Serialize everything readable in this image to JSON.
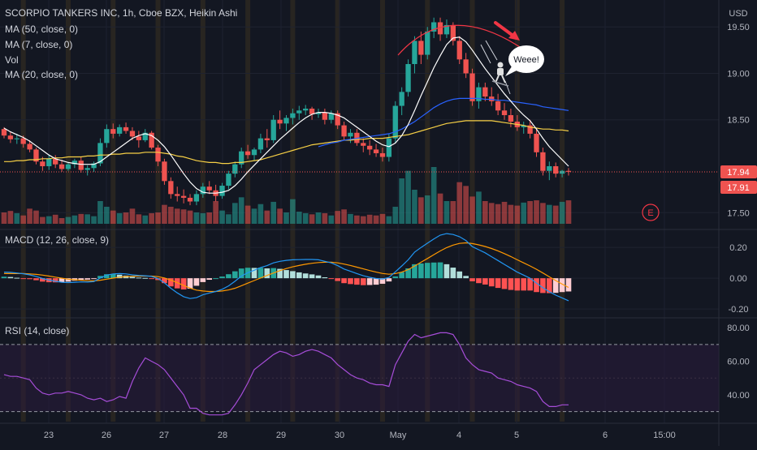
{
  "header": {
    "symbol_line": "SCORPIO TANKERS INC, 1h, Cboe BZX, Heikin Ashi",
    "currency": "USD",
    "indicators": [
      "MA (50, close, 0)",
      "MA (7, close, 0)",
      "Vol",
      "MA (20, close, 0)"
    ]
  },
  "annotation": {
    "speech": "Weee!",
    "earnings_marker": "E"
  },
  "colors": {
    "up": "#26a69a",
    "down": "#ef5350",
    "ma7": "#ffffff",
    "ma50": "#2962ff",
    "ma20": "#f7d046",
    "rsi": "#a64dd8",
    "macd": "#2196f3",
    "signal": "#ff9800"
  },
  "chart_data": [
    {
      "type": "candlestick",
      "title": "SCORPIO TANKERS INC, 1h, Cboe BZX, Heikin Ashi",
      "x_tick_labels": [
        "23",
        "26",
        "27",
        "28",
        "29",
        "30",
        "May",
        "4",
        "5",
        "6",
        "15:00"
      ],
      "y_tick_labels": [
        "19.50",
        "19.00",
        "18.50",
        "17.50"
      ],
      "ylim": [
        17.38,
        19.72
      ],
      "price_labels": [
        "17.94",
        "17.91"
      ],
      "candles": [
        [
          18.4,
          18.42,
          18.3,
          18.33
        ],
        [
          18.33,
          18.37,
          18.25,
          18.29
        ],
        [
          18.29,
          18.35,
          18.24,
          18.3
        ],
        [
          18.3,
          18.33,
          18.2,
          18.24
        ],
        [
          18.24,
          18.28,
          18.15,
          18.18
        ],
        [
          18.18,
          18.2,
          18.02,
          18.05
        ],
        [
          18.05,
          18.1,
          17.95,
          18.0
        ],
        [
          18.0,
          18.12,
          17.96,
          18.08
        ],
        [
          18.08,
          18.12,
          17.98,
          18.02
        ],
        [
          18.02,
          18.07,
          17.94,
          17.97
        ],
        [
          17.97,
          18.04,
          17.95,
          18.02
        ],
        [
          18.02,
          18.08,
          17.98,
          18.06
        ],
        [
          18.06,
          18.1,
          17.93,
          17.96
        ],
        [
          17.96,
          18.01,
          17.9,
          17.98
        ],
        [
          17.98,
          18.05,
          17.94,
          18.03
        ],
        [
          18.03,
          18.3,
          18.0,
          18.25
        ],
        [
          18.25,
          18.45,
          18.2,
          18.4
        ],
        [
          18.4,
          18.46,
          18.3,
          18.35
        ],
        [
          18.35,
          18.45,
          18.32,
          18.42
        ],
        [
          18.42,
          18.47,
          18.35,
          18.38
        ],
        [
          18.38,
          18.42,
          18.28,
          18.32
        ],
        [
          18.32,
          18.38,
          18.2,
          18.28
        ],
        [
          18.28,
          18.4,
          18.26,
          18.36
        ],
        [
          18.36,
          18.38,
          18.18,
          18.2
        ],
        [
          18.2,
          18.23,
          18.0,
          18.05
        ],
        [
          18.05,
          18.08,
          17.8,
          17.84
        ],
        [
          17.84,
          17.88,
          17.65,
          17.7
        ],
        [
          17.7,
          17.78,
          17.62,
          17.68
        ],
        [
          17.68,
          17.75,
          17.6,
          17.66
        ],
        [
          17.66,
          17.7,
          17.58,
          17.62
        ],
        [
          17.62,
          17.74,
          17.58,
          17.7
        ],
        [
          17.7,
          17.82,
          17.66,
          17.78
        ],
        [
          17.78,
          17.84,
          17.7,
          17.74
        ],
        [
          17.74,
          17.8,
          17.62,
          17.68
        ],
        [
          17.68,
          17.82,
          17.65,
          17.79
        ],
        [
          17.79,
          17.95,
          17.75,
          17.92
        ],
        [
          17.92,
          18.05,
          17.88,
          18.02
        ],
        [
          18.02,
          18.2,
          17.98,
          18.16
        ],
        [
          18.16,
          18.23,
          18.08,
          18.12
        ],
        [
          18.12,
          18.2,
          18.06,
          18.18
        ],
        [
          18.18,
          18.35,
          18.14,
          18.3
        ],
        [
          18.3,
          18.4,
          18.2,
          18.28
        ],
        [
          18.28,
          18.55,
          18.25,
          18.5
        ],
        [
          18.5,
          18.6,
          18.4,
          18.46
        ],
        [
          18.46,
          18.55,
          18.38,
          18.52
        ],
        [
          18.52,
          18.62,
          18.45,
          18.57
        ],
        [
          18.57,
          18.65,
          18.5,
          18.6
        ],
        [
          18.6,
          18.66,
          18.55,
          18.62
        ],
        [
          18.62,
          18.64,
          18.5,
          18.56
        ],
        [
          18.56,
          18.62,
          18.52,
          18.58
        ],
        [
          18.58,
          18.62,
          18.45,
          18.5
        ],
        [
          18.5,
          18.6,
          18.46,
          18.57
        ],
        [
          18.57,
          18.6,
          18.4,
          18.44
        ],
        [
          18.44,
          18.48,
          18.28,
          18.32
        ],
        [
          18.32,
          18.4,
          18.25,
          18.36
        ],
        [
          18.36,
          18.4,
          18.22,
          18.25
        ],
        [
          18.25,
          18.3,
          18.15,
          18.22
        ],
        [
          18.22,
          18.28,
          18.12,
          18.18
        ],
        [
          18.18,
          18.24,
          18.1,
          18.14
        ],
        [
          18.14,
          18.2,
          18.05,
          18.1
        ],
        [
          18.1,
          18.35,
          18.05,
          18.3
        ],
        [
          18.3,
          18.7,
          18.25,
          18.65
        ],
        [
          18.65,
          18.85,
          18.55,
          18.8
        ],
        [
          18.8,
          19.15,
          18.75,
          19.1
        ],
        [
          19.1,
          19.4,
          19.0,
          19.35
        ],
        [
          19.35,
          19.45,
          19.1,
          19.2
        ],
        [
          19.2,
          19.5,
          19.15,
          19.45
        ],
        [
          19.45,
          19.6,
          19.38,
          19.55
        ],
        [
          19.55,
          19.6,
          19.35,
          19.42
        ],
        [
          19.42,
          19.58,
          19.38,
          19.52
        ],
        [
          19.52,
          19.55,
          19.3,
          19.35
        ],
        [
          19.35,
          19.4,
          19.1,
          19.15
        ],
        [
          19.15,
          19.22,
          18.95,
          19.0
        ],
        [
          19.0,
          19.05,
          18.65,
          18.7
        ],
        [
          18.7,
          18.9,
          18.62,
          18.85
        ],
        [
          18.85,
          18.9,
          18.7,
          18.75
        ],
        [
          18.75,
          18.85,
          18.65,
          18.7
        ],
        [
          18.7,
          18.78,
          18.55,
          18.6
        ],
        [
          18.6,
          18.68,
          18.5,
          18.55
        ],
        [
          18.55,
          18.62,
          18.42,
          18.48
        ],
        [
          18.48,
          18.55,
          18.38,
          18.42
        ],
        [
          18.42,
          18.48,
          18.35,
          18.44
        ],
        [
          18.44,
          18.5,
          18.3,
          18.35
        ],
        [
          18.35,
          18.4,
          18.1,
          18.15
        ],
        [
          18.15,
          18.2,
          17.9,
          17.95
        ],
        [
          17.95,
          18.05,
          17.85,
          18.0
        ],
        [
          18.0,
          18.04,
          17.88,
          17.92
        ],
        [
          17.92,
          17.96,
          17.88,
          17.95
        ],
        [
          17.95,
          17.98,
          17.9,
          17.94
        ]
      ],
      "ma7": [
        18.41,
        18.37,
        18.34,
        18.31,
        18.27,
        18.22,
        18.17,
        18.12,
        18.08,
        18.06,
        18.04,
        18.03,
        18.02,
        18.02,
        18.02,
        18.05,
        18.1,
        18.15,
        18.2,
        18.25,
        18.3,
        18.33,
        18.35,
        18.33,
        18.28,
        18.21,
        18.12,
        18.02,
        17.92,
        17.83,
        17.76,
        17.72,
        17.71,
        17.71,
        17.72,
        17.74,
        17.79,
        17.86,
        17.94,
        18.01,
        18.08,
        18.15,
        18.22,
        18.29,
        18.35,
        18.41,
        18.47,
        18.52,
        18.56,
        18.58,
        18.58,
        18.57,
        18.55,
        18.52,
        18.47,
        18.42,
        18.37,
        18.32,
        18.27,
        18.23,
        18.21,
        18.25,
        18.33,
        18.45,
        18.6,
        18.76,
        18.91,
        19.06,
        19.19,
        19.31,
        19.38,
        19.39,
        19.34,
        19.25,
        19.15,
        19.05,
        18.96,
        18.87,
        18.78,
        18.7,
        18.62,
        18.55,
        18.49,
        18.4,
        18.3,
        18.21,
        18.14,
        18.07,
        18.0
      ],
      "ma50": [
        null,
        null,
        null,
        null,
        null,
        null,
        null,
        null,
        null,
        null,
        null,
        null,
        null,
        null,
        null,
        null,
        null,
        null,
        null,
        null,
        null,
        null,
        null,
        null,
        null,
        null,
        null,
        null,
        null,
        null,
        null,
        null,
        null,
        null,
        null,
        null,
        null,
        null,
        null,
        null,
        null,
        null,
        null,
        null,
        null,
        null,
        null,
        null,
        null,
        18.21,
        18.23,
        18.25,
        18.26,
        18.28,
        18.29,
        18.3,
        18.31,
        18.32,
        18.33,
        18.34,
        18.35,
        18.37,
        18.4,
        18.44,
        18.48,
        18.53,
        18.58,
        18.63,
        18.67,
        18.7,
        18.72,
        18.73,
        18.73,
        18.73,
        18.73,
        18.72,
        18.72,
        18.71,
        18.71,
        18.7,
        18.69,
        18.68,
        18.67,
        18.66,
        18.64,
        18.63,
        18.62,
        18.61,
        18.6
      ],
      "ma20": [
        18.05,
        18.05,
        18.06,
        18.06,
        18.07,
        18.07,
        18.08,
        18.08,
        18.09,
        18.09,
        18.1,
        18.1,
        18.1,
        18.11,
        18.11,
        18.12,
        18.12,
        18.13,
        18.13,
        18.14,
        18.14,
        18.14,
        18.15,
        18.15,
        18.15,
        18.14,
        18.13,
        18.11,
        18.1,
        18.08,
        18.06,
        18.05,
        18.04,
        18.04,
        18.03,
        18.03,
        18.04,
        18.04,
        18.05,
        18.06,
        18.07,
        18.09,
        18.11,
        18.13,
        18.15,
        18.17,
        18.19,
        18.21,
        18.23,
        18.24,
        18.25,
        18.26,
        18.27,
        18.28,
        18.28,
        18.29,
        18.29,
        18.3,
        18.3,
        18.3,
        18.31,
        18.32,
        18.33,
        18.34,
        18.36,
        18.38,
        18.4,
        18.42,
        18.44,
        18.46,
        18.47,
        18.48,
        18.49,
        18.49,
        18.49,
        18.49,
        18.49,
        18.48,
        18.47,
        18.46,
        18.45,
        18.44,
        18.42,
        18.41,
        18.4,
        18.4,
        18.39,
        18.39,
        18.38
      ]
    },
    {
      "type": "bar",
      "title": "Vol",
      "values": [
        30,
        34,
        28,
        22,
        40,
        35,
        18,
        20,
        24,
        15,
        18,
        22,
        26,
        25,
        20,
        60,
        45,
        35,
        28,
        30,
        40,
        25,
        22,
        28,
        30,
        50,
        45,
        40,
        38,
        35,
        30,
        28,
        30,
        60,
        35,
        25,
        55,
        70,
        48,
        40,
        52,
        35,
        58,
        40,
        30,
        65,
        32,
        28,
        25,
        30,
        28,
        22,
        34,
        38,
        26,
        22,
        20,
        24,
        22,
        26,
        20,
        45,
        120,
        140,
        90,
        70,
        75,
        150,
        80,
        60,
        60,
        110,
        100,
        72,
        85,
        60,
        55,
        52,
        58,
        50,
        48,
        56,
        60,
        62,
        55,
        50,
        48,
        58,
        62
      ]
    },
    {
      "type": "line",
      "title": "MACD (12, 26, close, 9)",
      "y_tick_labels": [
        "0.20",
        "0.00",
        "-0.20"
      ],
      "ylim": [
        -0.21,
        0.28
      ],
      "macd": [
        0.04,
        0.038,
        0.034,
        0.029,
        0.022,
        0.012,
        -0.002,
        -0.012,
        -0.02,
        -0.026,
        -0.028,
        -0.026,
        -0.024,
        -0.025,
        -0.022,
        0.002,
        0.02,
        0.028,
        0.03,
        0.028,
        0.022,
        0.018,
        0.016,
        0.012,
        -0.002,
        -0.03,
        -0.065,
        -0.095,
        -0.12,
        -0.132,
        -0.126,
        -0.108,
        -0.096,
        -0.086,
        -0.072,
        -0.05,
        -0.02,
        0.014,
        0.036,
        0.052,
        0.07,
        0.082,
        0.1,
        0.11,
        0.116,
        0.12,
        0.121,
        0.122,
        0.122,
        0.12,
        0.11,
        0.1,
        0.082,
        0.06,
        0.045,
        0.03,
        0.016,
        0.006,
        -0.002,
        -0.005,
        0.005,
        0.042,
        0.08,
        0.12,
        0.17,
        0.2,
        0.228,
        0.255,
        0.28,
        0.29,
        0.284,
        0.27,
        0.245,
        0.205,
        0.185,
        0.165,
        0.14,
        0.115,
        0.09,
        0.065,
        0.04,
        0.02,
        0.0,
        -0.032,
        -0.062,
        -0.088,
        -0.11,
        -0.128,
        -0.146
      ],
      "signal": [
        0.03,
        0.03,
        0.031,
        0.03,
        0.028,
        0.025,
        0.02,
        0.014,
        0.007,
        0.0,
        -0.006,
        -0.01,
        -0.013,
        -0.016,
        -0.017,
        -0.013,
        -0.006,
        0.001,
        0.007,
        0.011,
        0.013,
        0.014,
        0.014,
        0.014,
        0.01,
        0.002,
        -0.012,
        -0.029,
        -0.047,
        -0.064,
        -0.077,
        -0.083,
        -0.086,
        -0.086,
        -0.083,
        -0.076,
        -0.065,
        -0.049,
        -0.032,
        -0.015,
        0.002,
        0.018,
        0.034,
        0.049,
        0.063,
        0.074,
        0.083,
        0.091,
        0.097,
        0.102,
        0.104,
        0.104,
        0.1,
        0.092,
        0.083,
        0.072,
        0.061,
        0.05,
        0.04,
        0.031,
        0.026,
        0.03,
        0.04,
        0.056,
        0.079,
        0.104,
        0.128,
        0.153,
        0.177,
        0.199,
        0.215,
        0.226,
        0.23,
        0.225,
        0.217,
        0.206,
        0.193,
        0.178,
        0.16,
        0.141,
        0.12,
        0.1,
        0.08,
        0.058,
        0.034,
        0.009,
        -0.015,
        -0.038,
        -0.06
      ]
    },
    {
      "type": "line",
      "title": "RSI (14, close)",
      "y_tick_labels": [
        "80.00",
        "60.00",
        "40.00"
      ],
      "ylim": [
        24,
        83
      ],
      "rsi": [
        52,
        51,
        51,
        50,
        49,
        44,
        41,
        40,
        41,
        41,
        42,
        41,
        40,
        38,
        37,
        38,
        36,
        37,
        39,
        38,
        48,
        56,
        62,
        60,
        58,
        55,
        50,
        45,
        40,
        32,
        32,
        29,
        28,
        28,
        28,
        29,
        34,
        40,
        47,
        55,
        58,
        61,
        64,
        66,
        65,
        63,
        64,
        66,
        67,
        66,
        64,
        62,
        58,
        55,
        52,
        50,
        49,
        47,
        46,
        46,
        45,
        58,
        65,
        72,
        76,
        74,
        75,
        76,
        77,
        77,
        76,
        70,
        62,
        58,
        55,
        54,
        53,
        50,
        49,
        48,
        46,
        45,
        44,
        42,
        36,
        33,
        33,
        34,
        34
      ]
    }
  ]
}
